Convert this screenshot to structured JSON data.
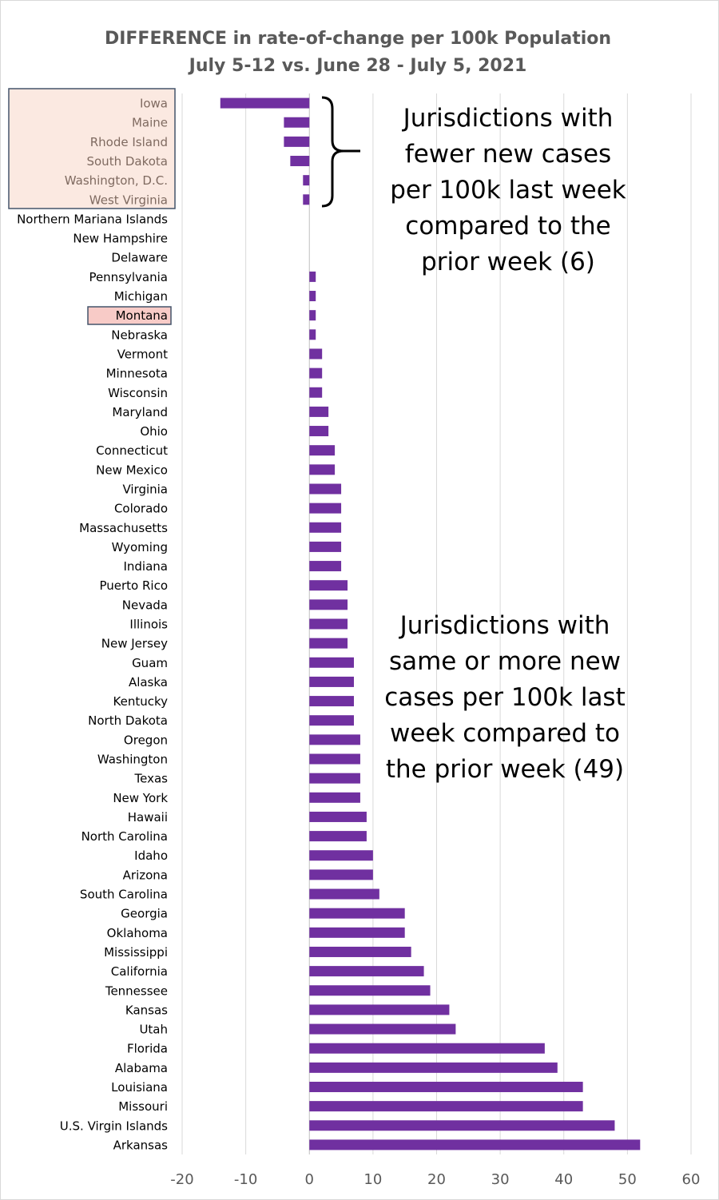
{
  "chart_data": {
    "type": "bar",
    "orientation": "horizontal",
    "title": "DIFFERENCE in rate-of-change per 100k Population",
    "subtitle": "July 5-12 vs. June 28 - July 5, 2021",
    "xlim": [
      -20,
      60
    ],
    "xticks": [
      -20,
      -10,
      0,
      10,
      20,
      30,
      40,
      50,
      60
    ],
    "grid": "vertical",
    "bar_color": "#7030A0",
    "categories": [
      "Iowa",
      "Maine",
      "Rhode Island",
      "South Dakota",
      "Washington, D.C.",
      "West Virginia",
      "Northern Mariana Islands",
      "New Hampshire",
      "Delaware",
      "Pennsylvania",
      "Michigan",
      "Montana",
      "Nebraska",
      "Vermont",
      "Minnesota",
      "Wisconsin",
      "Maryland",
      "Ohio",
      "Connecticut",
      "New Mexico",
      "Virginia",
      "Colorado",
      "Massachusetts",
      "Wyoming",
      "Indiana",
      "Puerto Rico",
      "Nevada",
      "Illinois",
      "New Jersey",
      "Guam",
      "Alaska",
      "Kentucky",
      "North Dakota",
      "Oregon",
      "Washington",
      "Texas",
      "New York",
      "Hawaii",
      "North Carolina",
      "Idaho",
      "Arizona",
      "South Carolina",
      "Georgia",
      "Oklahoma",
      "Mississippi",
      "California",
      "Tennessee",
      "Kansas",
      "Utah",
      "Florida",
      "Alabama",
      "Louisiana",
      "Missouri",
      "U.S. Virgin Islands",
      "Arkansas"
    ],
    "values": [
      -14,
      -4,
      -4,
      -3,
      -1,
      -1,
      0,
      0,
      0,
      1,
      1,
      1,
      1,
      2,
      2,
      2,
      3,
      3,
      4,
      4,
      5,
      5,
      5,
      5,
      5,
      6,
      6,
      6,
      6,
      7,
      7,
      7,
      7,
      8,
      8,
      8,
      8,
      9,
      9,
      10,
      10,
      11,
      15,
      15,
      16,
      18,
      19,
      22,
      23,
      37,
      39,
      43,
      43,
      48,
      52
    ],
    "highlight_group_fewer": [
      "Iowa",
      "Maine",
      "Rhode Island",
      "South Dakota",
      "Washington, D.C.",
      "West Virginia"
    ],
    "highlight_single": "Montana",
    "annotations": {
      "fewer": [
        "Jurisdictions with",
        "fewer new cases",
        "per 100k last week",
        "compared to the",
        "prior week (6)"
      ],
      "more": [
        "Jurisdictions with",
        "same or more new",
        "cases per 100k last",
        "week compared to",
        "the prior week (49)"
      ]
    }
  }
}
